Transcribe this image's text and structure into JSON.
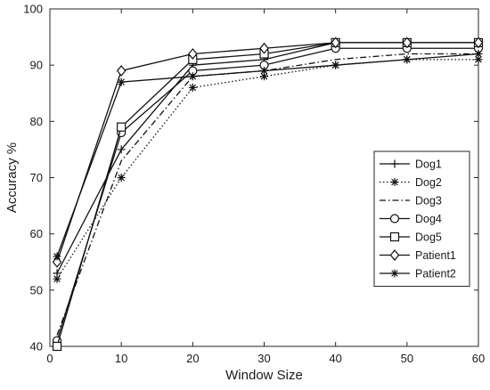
{
  "chart_data": {
    "type": "line",
    "title": "",
    "xlabel": "Window Size",
    "ylabel": "Accuracy %",
    "xlim": [
      0,
      60
    ],
    "ylim": [
      40,
      100
    ],
    "xticks": [
      0,
      10,
      20,
      30,
      40,
      50,
      60
    ],
    "yticks": [
      40,
      50,
      60,
      70,
      80,
      90,
      100
    ],
    "grid": false,
    "legend_position": "right",
    "x": [
      1,
      10,
      20,
      30,
      40,
      50,
      60
    ],
    "series": [
      {
        "name": "Dog1",
        "marker": "plus",
        "line": "solid",
        "values": [
          53,
          75,
          90,
          91,
          94,
          94,
          94
        ]
      },
      {
        "name": "Dog2",
        "marker": "asterisk",
        "line": "dotted",
        "values": [
          52,
          70,
          86,
          88,
          90,
          91,
          91
        ]
      },
      {
        "name": "Dog3",
        "marker": "none",
        "line": "dashdot",
        "values": [
          42,
          73,
          88,
          89,
          91,
          92,
          92
        ]
      },
      {
        "name": "Dog4",
        "marker": "circle",
        "line": "solid",
        "values": [
          41,
          78,
          89,
          90,
          93,
          93,
          93
        ]
      },
      {
        "name": "Dog5",
        "marker": "square",
        "line": "solid",
        "values": [
          40,
          79,
          91,
          92,
          94,
          94,
          94
        ]
      },
      {
        "name": "Patient1",
        "marker": "diamond",
        "line": "solid",
        "values": [
          55,
          89,
          92,
          93,
          94,
          94,
          94
        ]
      },
      {
        "name": "Patient2",
        "marker": "asterisk",
        "line": "solid",
        "values": [
          56,
          87,
          88,
          89,
          90,
          91,
          92
        ]
      }
    ]
  }
}
